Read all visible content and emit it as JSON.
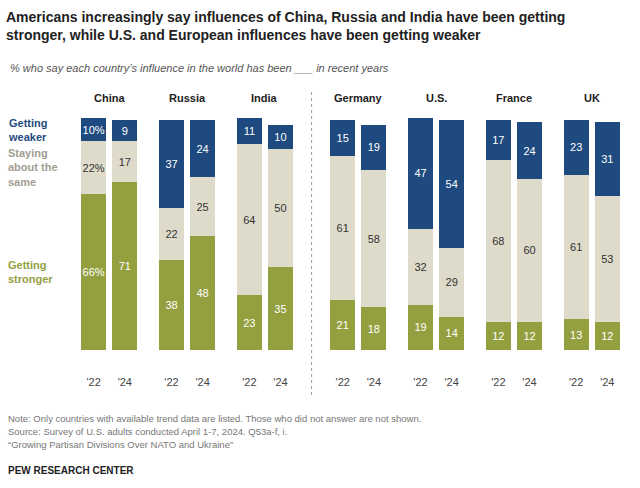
{
  "chart_data": {
    "type": "bar",
    "stacked": true,
    "data_labels": true,
    "tick_labels": "x",
    "legend": "left",
    "title": "Americans increasingly say influences of China, Russia and India have been getting stronger, while U.S. and European influences have been getting weaker",
    "subtitle": "% who say each country’s influence in the world has been ___ in recent years",
    "categories": [
      "'22",
      "'24",
      "'22",
      "'24",
      "'22",
      "'24",
      "'22",
      "'24",
      "'22",
      "'24",
      "'22",
      "'24",
      "'22",
      "'24"
    ],
    "groups": [
      "China",
      "Russia",
      "India",
      "Germany",
      "U.S.",
      "France",
      "UK"
    ],
    "series": [
      {
        "name": "Getting stronger",
        "color": "#949f3f",
        "values": [
          66,
          71,
          38,
          48,
          23,
          35,
          21,
          18,
          19,
          14,
          12,
          12,
          13,
          12
        ],
        "value_labels": [
          "66%",
          "71",
          "38",
          "48",
          "23",
          "35",
          "21",
          "18",
          "19",
          "14",
          "12",
          "12",
          "13",
          "12"
        ]
      },
      {
        "name": "Staying about the same",
        "color": "#dedbcb",
        "values": [
          22,
          17,
          22,
          25,
          64,
          50,
          61,
          58,
          32,
          29,
          68,
          60,
          61,
          53
        ],
        "value_labels": [
          "22%",
          "17",
          "22",
          "25",
          "64",
          "50",
          "61",
          "58",
          "32",
          "29",
          "68",
          "60",
          "61",
          "53"
        ]
      },
      {
        "name": "Getting weaker",
        "color": "#1f4a7f",
        "values": [
          10,
          9,
          37,
          24,
          11,
          10,
          15,
          19,
          47,
          54,
          17,
          24,
          23,
          31
        ],
        "value_labels": [
          "10%",
          "9",
          "37",
          "24",
          "11",
          "10",
          "15",
          "19",
          "47",
          "54",
          "17",
          "24",
          "23",
          "31"
        ]
      }
    ],
    "ylim": [
      0,
      100
    ],
    "notes": [
      "Note: Only countries with available trend data are listed. Those who did not answer are not shown.",
      "Source: Survey of U.S. adults conducted April 1-7, 2024. Q53a-f, i.",
      "“Growing Partisan Divisions Over NATO and Ukraine”"
    ],
    "credit": "PEW RESEARCH CENTER"
  }
}
